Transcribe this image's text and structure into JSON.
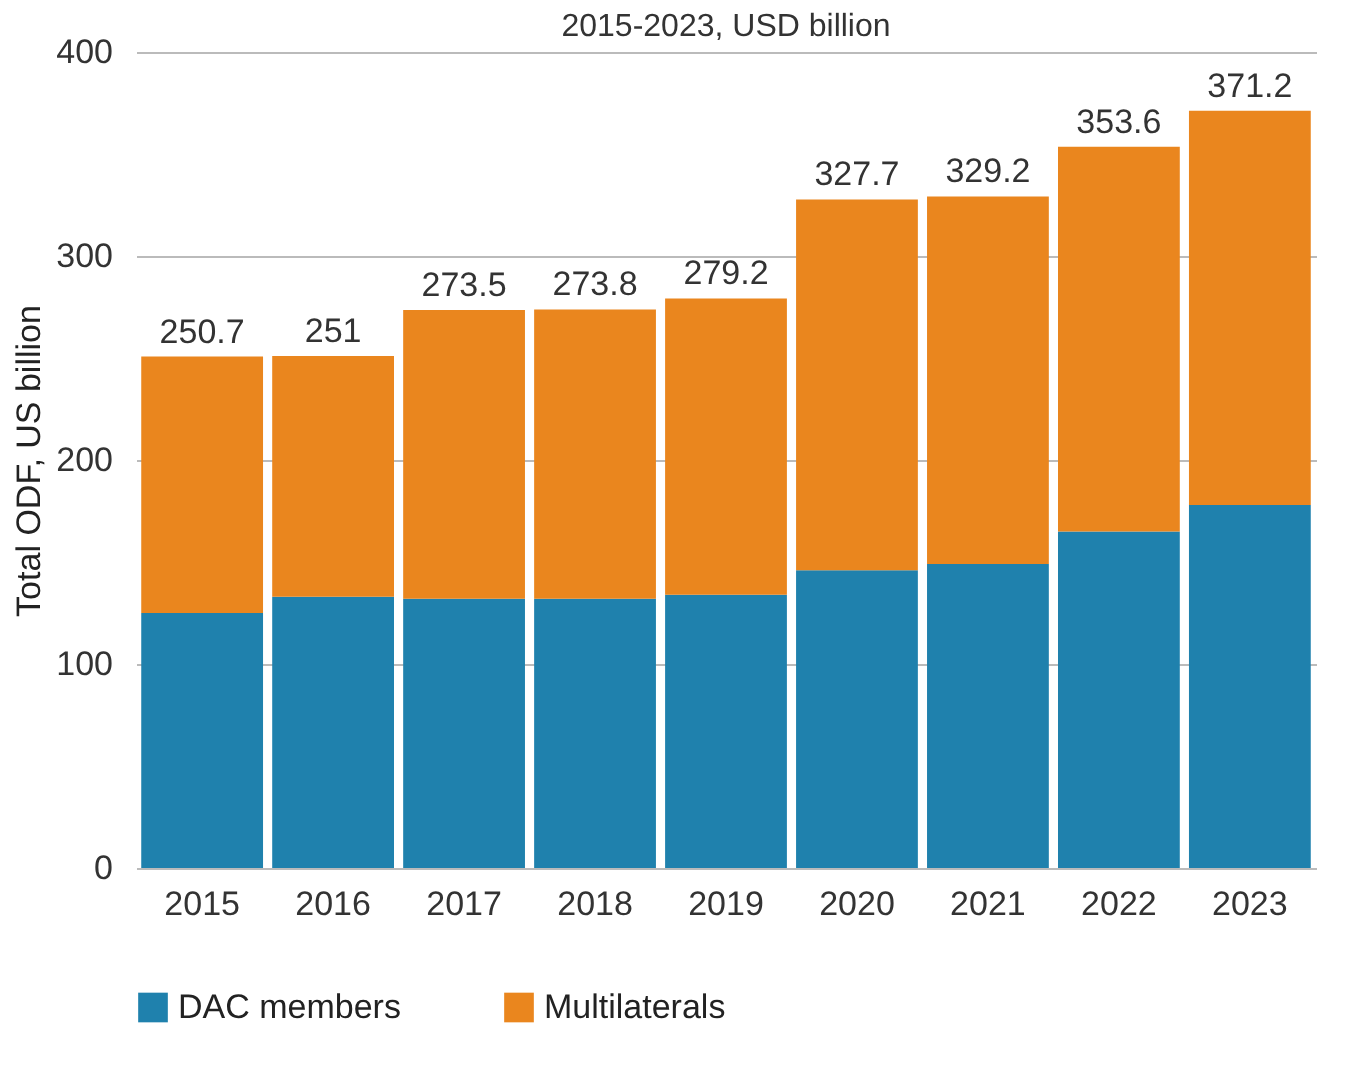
{
  "chart_data": {
    "type": "bar",
    "stacked": true,
    "title": "2015-2023, USD billion",
    "ylabel": "Total ODF, US billion",
    "categories": [
      "2015",
      "2016",
      "2017",
      "2018",
      "2019",
      "2020",
      "2021",
      "2022",
      "2023"
    ],
    "series": [
      {
        "name": "DAC members",
        "color": "#1f81ad",
        "values": [
          125,
          133,
          132,
          132,
          134,
          146,
          149,
          165,
          178
        ]
      },
      {
        "name": "Multilaterals",
        "color": "#ea861e",
        "values": [
          125.7,
          118,
          141.5,
          141.8,
          145.2,
          181.7,
          180.2,
          188.6,
          193.2
        ]
      }
    ],
    "totals": [
      "250.7",
      "251",
      "273.5",
      "273.8",
      "279.2",
      "327.7",
      "329.2",
      "353.6",
      "371.2"
    ],
    "ylim": [
      0,
      400
    ],
    "yticks": [
      0,
      100,
      200,
      300,
      400
    ],
    "grid": "y",
    "legend": "bottom"
  }
}
